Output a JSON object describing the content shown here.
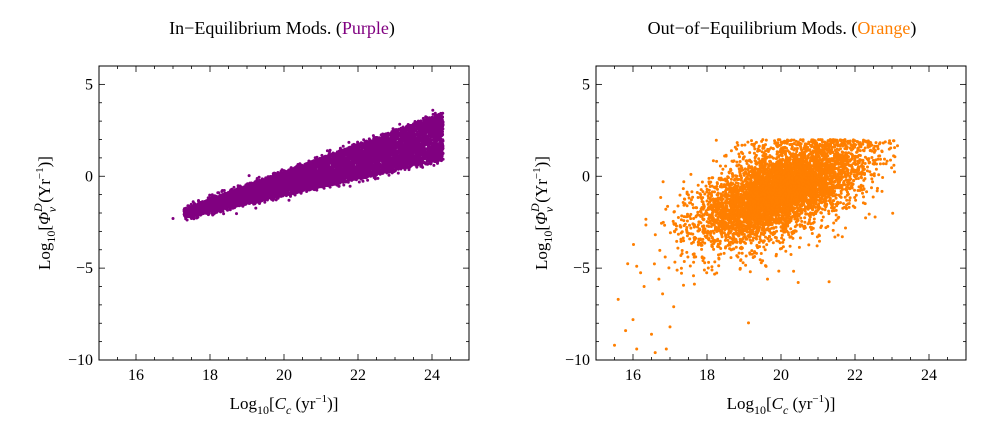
{
  "chart_data": [
    {
      "type": "scatter",
      "title_main": "In−Equilibrium Mods. (",
      "title_color_word": "Purple",
      "title_close": ")",
      "color": "#800080",
      "xlabel": {
        "base": "Log",
        "sub1": "10",
        "open": "[",
        "var": "C",
        "varsub": "c",
        "unit": " (yr",
        "exp": "−1",
        "close": ")]"
      },
      "ylabel": {
        "base": "Log",
        "sub1": "10",
        "open": "[",
        "var": "Φ",
        "varsup": "D",
        "varsub": "ν",
        "unit": " (Yr",
        "exp": "−1",
        "close": ")]"
      },
      "xlim": [
        15,
        25
      ],
      "ylim": [
        -10,
        6
      ],
      "xticks": [
        16,
        18,
        20,
        22,
        24
      ],
      "yticks": [
        -10,
        -5,
        0,
        5
      ],
      "xtick_labels": [
        "16",
        "18",
        "20",
        "22",
        "24"
      ],
      "ytick_labels": [
        "−10",
        "−5",
        "0",
        "5"
      ],
      "grid": false,
      "distribution": {
        "kind": "band",
        "n": 8000,
        "x_min": 17.3,
        "x_max": 24.3,
        "center_start": -2.0,
        "center_end": 2.3,
        "spread_start": 0.25,
        "spread_end": 1.3
      },
      "outliers": [
        [
          17.0,
          -2.3
        ],
        [
          17.5,
          -2.3
        ],
        [
          17.3,
          -1.9
        ]
      ]
    },
    {
      "type": "scatter",
      "title_main": "Out−of−Equilibrium Mods. (",
      "title_color_word": "Orange",
      "title_close": ")",
      "color": "#ff7f00",
      "xlabel": {
        "base": "Log",
        "sub1": "10",
        "open": "[",
        "var": "C",
        "varsub": "c",
        "unit": " (yr",
        "exp": "−1",
        "close": ")]"
      },
      "ylabel": {
        "base": "Log",
        "sub1": "10",
        "open": "[",
        "var": "Φ",
        "varsup": "D",
        "varsub": "ν",
        "unit": " (Yr",
        "exp": "−1",
        "close": ")]"
      },
      "xlim": [
        15,
        25
      ],
      "ylim": [
        -10,
        6
      ],
      "xticks": [
        16,
        18,
        20,
        22,
        24
      ],
      "yticks": [
        -10,
        -5,
        0,
        5
      ],
      "xtick_labels": [
        "16",
        "18",
        "20",
        "22",
        "24"
      ],
      "ytick_labels": [
        "−10",
        "−5",
        "0",
        "5"
      ],
      "grid": false,
      "distribution": {
        "kind": "cloud",
        "n": 6000,
        "x_min": 15.4,
        "x_max": 23.2,
        "center_x": 20.0,
        "center_y": -0.8,
        "sd_x": 1.1,
        "sd_y": 1.5,
        "slope": 0.75
      },
      "outliers": [
        [
          15.5,
          -9.2
        ],
        [
          15.6,
          -6.7
        ],
        [
          16.0,
          -7.8
        ],
        [
          16.1,
          -9.4
        ],
        [
          16.1,
          -4.9
        ],
        [
          16.5,
          -8.6
        ],
        [
          16.6,
          -9.6
        ],
        [
          16.9,
          -9.4
        ],
        [
          16.8,
          -6.4
        ],
        [
          17.1,
          -7.1
        ],
        [
          16.3,
          -6.0
        ],
        [
          15.8,
          -8.4
        ],
        [
          16.7,
          -5.6
        ],
        [
          17.0,
          -8.2
        ]
      ]
    }
  ]
}
